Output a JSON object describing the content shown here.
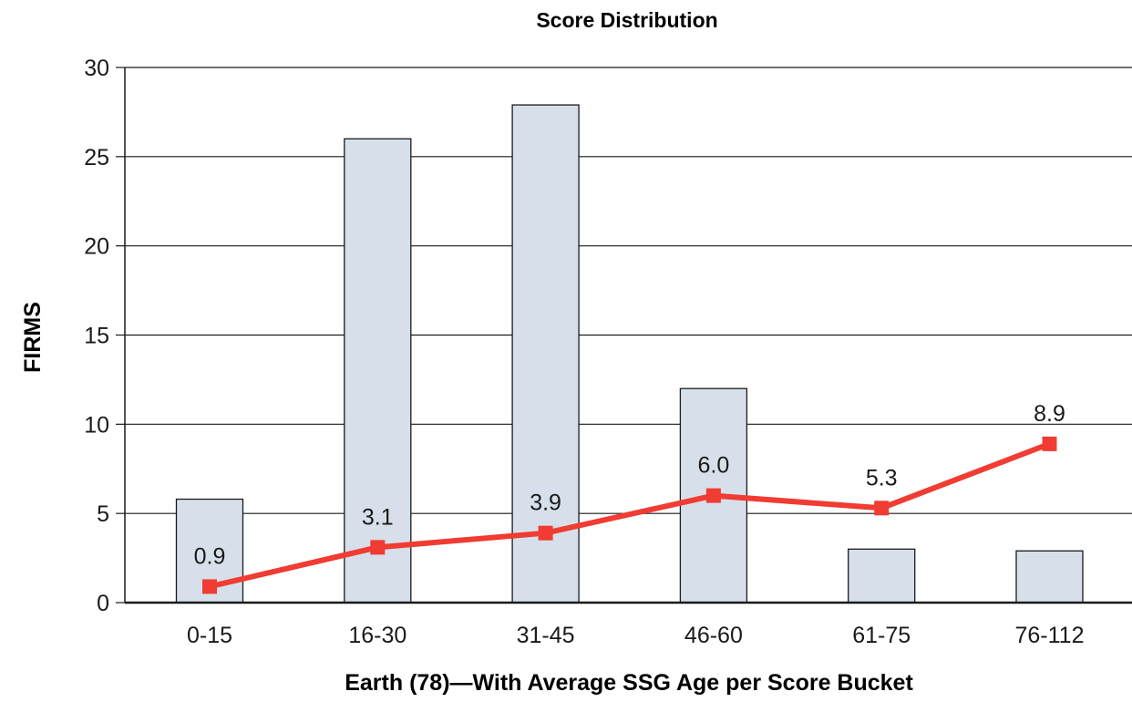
{
  "chart_data": {
    "type": "bar",
    "title": "Score Distribution",
    "xlabel": "Earth (78)—With Average SSG Age per Score Bucket",
    "ylabel": "FIRMS",
    "ylim": [
      0,
      30
    ],
    "yticks": [
      0,
      5,
      10,
      15,
      20,
      25,
      30
    ],
    "grid": true,
    "categories": [
      "0-15",
      "16-30",
      "31-45",
      "46-60",
      "61-75",
      "76-112"
    ],
    "series": [
      {
        "type": "bar",
        "values": [
          5.8,
          26,
          27.9,
          12,
          3,
          2.9
        ]
      },
      {
        "type": "line",
        "values": [
          0.9,
          3.1,
          3.9,
          6.0,
          5.3,
          8.9
        ],
        "labels": [
          "0.9",
          "3.1",
          "3.9",
          "6.0",
          "5.3",
          "8.9"
        ]
      }
    ],
    "colors": {
      "bar_fill": "#d7e0ea",
      "bar_stroke": "#1a1a1a",
      "line": "#f03c32",
      "grid": "#1a1a1a"
    }
  }
}
